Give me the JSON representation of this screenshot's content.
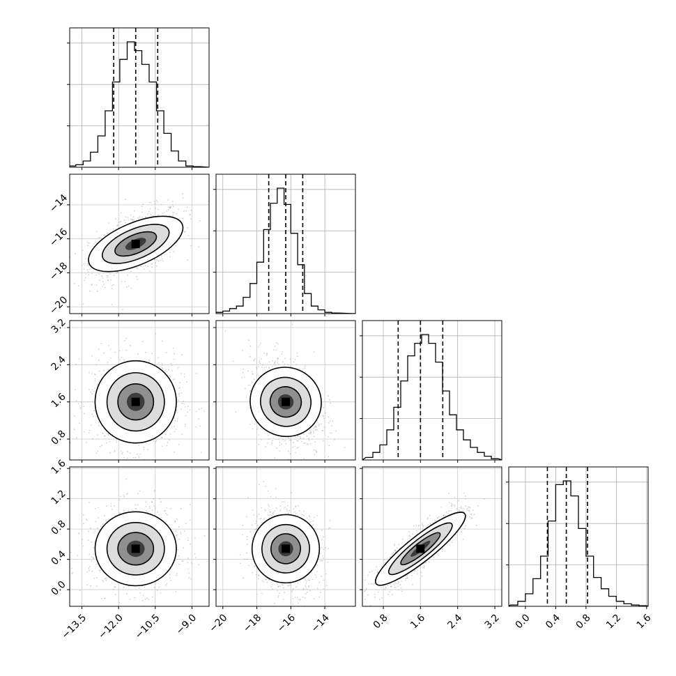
{
  "chart_data": {
    "type": "corner",
    "grid": true,
    "parameters": [
      {
        "index": 0,
        "range": [
          -14.0,
          -8.3
        ],
        "ticks": [
          -13.5,
          -12.0,
          -10.5,
          -9.0
        ],
        "tick_labels": [
          "−13.5",
          "−12.0",
          "−10.5",
          "−9.0"
        ],
        "median": -11.3,
        "q16": -12.2,
        "q84": -10.4
      },
      {
        "index": 1,
        "range": [
          -20.4,
          -12.2
        ],
        "ticks": [
          -20,
          -18,
          -16,
          -14
        ],
        "tick_labels": [
          "−20",
          "−18",
          "−16",
          "−14"
        ],
        "median": -16.3,
        "q16": -17.3,
        "q84": -15.3
      },
      {
        "index": 2,
        "range": [
          0.35,
          3.35
        ],
        "ticks": [
          0.8,
          1.6,
          2.4,
          3.2
        ],
        "tick_labels": [
          "0.8",
          "1.6",
          "2.4",
          "3.2"
        ],
        "median": 1.6,
        "q16": 1.12,
        "q84": 2.08
      },
      {
        "index": 3,
        "range": [
          -0.22,
          1.62
        ],
        "ticks": [
          0.0,
          0.4,
          0.8,
          1.2,
          1.6
        ],
        "tick_labels": [
          "0.0",
          "0.4",
          "0.8",
          "1.2",
          "1.6"
        ],
        "median": 0.54,
        "q16": 0.29,
        "q84": 0.82
      }
    ],
    "marginals": [
      {
        "param": 0,
        "bins": [
          -13.9,
          -13.6,
          -13.3,
          -13.0,
          -12.7,
          -12.4,
          -12.1,
          -11.8,
          -11.5,
          -11.2,
          -10.9,
          -10.6,
          -10.3,
          -10.0,
          -9.7,
          -9.4,
          -9.1,
          -8.8
        ],
        "counts": [
          0.01,
          0.02,
          0.05,
          0.12,
          0.25,
          0.45,
          0.68,
          0.86,
          1.0,
          0.93,
          0.82,
          0.68,
          0.45,
          0.27,
          0.13,
          0.05,
          0.01,
          0.005
        ]
      },
      {
        "param": 1,
        "bins": [
          -20.2,
          -19.8,
          -19.4,
          -19.0,
          -18.6,
          -18.2,
          -17.8,
          -17.4,
          -17.0,
          -16.6,
          -16.2,
          -15.8,
          -15.4,
          -15.0,
          -14.6,
          -14.2,
          -13.8,
          -13.4
        ],
        "counts": [
          0.01,
          0.02,
          0.04,
          0.06,
          0.13,
          0.24,
          0.41,
          0.67,
          0.88,
          1.0,
          0.87,
          0.64,
          0.39,
          0.16,
          0.06,
          0.03,
          0.01,
          0.005
        ]
      },
      {
        "param": 2,
        "bins": [
          0.5,
          0.65,
          0.8,
          0.95,
          1.1,
          1.25,
          1.4,
          1.55,
          1.7,
          1.85,
          2.0,
          2.15,
          2.3,
          2.45,
          2.6,
          2.75,
          2.9,
          3.05,
          3.2
        ],
        "counts": [
          0.02,
          0.06,
          0.12,
          0.24,
          0.42,
          0.63,
          0.83,
          0.93,
          1.0,
          0.93,
          0.78,
          0.55,
          0.36,
          0.24,
          0.16,
          0.1,
          0.06,
          0.03,
          0.01
        ]
      },
      {
        "param": 3,
        "bins": [
          -0.15,
          -0.05,
          0.05,
          0.15,
          0.25,
          0.35,
          0.45,
          0.55,
          0.65,
          0.75,
          0.85,
          0.95,
          1.05,
          1.15,
          1.25,
          1.35,
          1.45,
          1.55
        ],
        "counts": [
          0.01,
          0.04,
          0.1,
          0.22,
          0.4,
          0.68,
          0.97,
          1.0,
          0.88,
          0.62,
          0.4,
          0.23,
          0.14,
          0.08,
          0.04,
          0.02,
          0.01,
          0.005
        ]
      }
    ],
    "joints": [
      {
        "x": 0,
        "y": 1,
        "corr": 0.55
      },
      {
        "x": 0,
        "y": 2,
        "corr": 0.0
      },
      {
        "x": 1,
        "y": 2,
        "corr": -0.3
      },
      {
        "x": 0,
        "y": 3,
        "corr": 0.0
      },
      {
        "x": 1,
        "y": 3,
        "corr": -0.15
      },
      {
        "x": 2,
        "y": 3,
        "corr": 0.88
      }
    ]
  }
}
